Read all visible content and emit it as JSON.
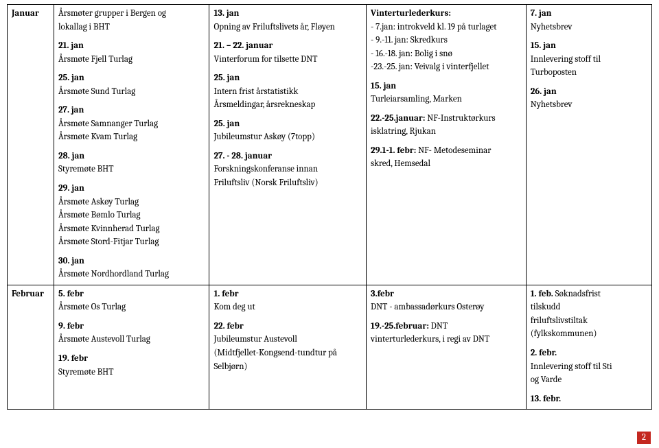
{
  "pagenum": "2",
  "rowlabels": {
    "januar": "Januar",
    "februar": "Februar"
  },
  "jan": {
    "c1": {
      "l1": "Årsmøter grupper i Bergen og",
      "l2": "lokallag i BHT",
      "d21": "21. jan",
      "t21": "Årsmøte Fjell Turlag",
      "d25": "25. jan",
      "t25": "Årsmøte Sund Turlag",
      "d27": "27. jan",
      "t27a": "Årsmøte Samnanger Turlag",
      "t27b": "Årsmøte Kvam Turlag",
      "d28": "28. jan",
      "t28": "Styremøte BHT",
      "d29": "29. jan",
      "t29a": "Årsmøte Askøy Turlag",
      "t29b": "Årsmøte Bømlo Turlag",
      "t29c": "Årsmøte Kvinnherad Turlag",
      "t29d": "Årsmøte Stord-Fitjar Turlag",
      "d30": "30. jan",
      "t30": "Årsmøte Nordhordland Turlag"
    },
    "c2": {
      "d13": "13. jan",
      "t13": "Opning av Friluftslivets år, Fløyen",
      "d21": "21. – 22. januar",
      "t21": "Vinterforum for tilsette DNT",
      "d25": "25. jan",
      "t25a": "Intern frist årstatistikk",
      "t25b": "Årsmeldingar, årsrekneskap",
      "d25b": "25. jan",
      "t25c": "Jubileumstur Askøy (7topp)",
      "d27": "27. - 28. januar",
      "t27a": "Forskningskonferanse innan",
      "t27b": "Friluftsliv (Norsk Friluftsliv)"
    },
    "c3": {
      "h": "Vinterturlederkurs:",
      "l1": "- 7.jan: introkveld kl. 19 på turlaget",
      "l2": "- 9.-11. jan: Skredkurs",
      "l3": "- 16.-18. jan: Bolig i snø",
      "l4": "-23.-25. jan: Veivalg i vinterfjellet",
      "d15": "15. jan",
      "t15": "Turleiarsamling, Marken",
      "d22a": "22.-25.januar:",
      "d22b": " NF-Instruktørkurs",
      "t22": "isklatring, Rjukan",
      "d29a": "29.1-1. febr:",
      "d29b": " NF- Metodeseminar",
      "t29": "skred, Hemsedal"
    },
    "c4": {
      "d7": "7. jan",
      "t7": "Nyhetsbrev",
      "d15": "15. jan",
      "t15a": "Innlevering stoff til",
      "t15b": "Turboposten",
      "d26": "26. jan",
      "t26": "Nyhetsbrev"
    }
  },
  "feb": {
    "c1": {
      "d5": "5. febr",
      "t5": "Årsmøte Os Turlag",
      "d9": "9. febr",
      "t9": "Årsmøte Austevoll Turlag",
      "d19": "19. febr",
      "t19": "Styremøte BHT"
    },
    "c2": {
      "d1": "1.   febr",
      "t1": "Kom deg ut",
      "d22": "22. febr",
      "t22a": "Jubileumstur Austevoll",
      "t22b": "(Midtfjellet-Kongsend-tundtur på",
      "t22c": "Selbjørn)"
    },
    "c3": {
      "d3": "3.febr",
      "t3": "DNT - ambassadørkurs Osterøy",
      "d19a": "19.-25.februar:",
      "d19b": " DNT",
      "t19": "vinterturlederkurs, i regi av DNT"
    },
    "c4": {
      "d1a": "1. feb.",
      "d1b": " Søknadsfrist",
      "t1a": "tilskudd",
      "t1b": "friluftslivstiltak",
      "t1c": "(fylkskommunen)",
      "d2": "2. febr.",
      "t2a": "Innlevering stoff til Sti",
      "t2b": "og Varde",
      "d13": "13. febr."
    }
  }
}
